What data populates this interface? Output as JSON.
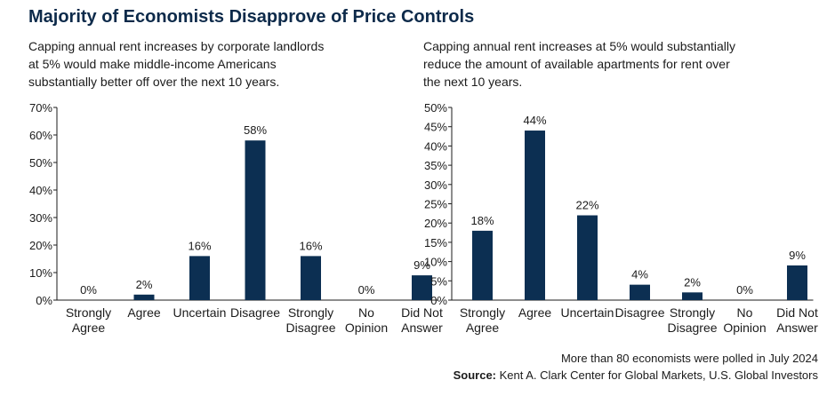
{
  "title": "Majority of Economists Disapprove of Price Controls",
  "footnote": "More than 80 economists were polled in July 2024",
  "source_label": "Source:",
  "source_text": " Kent A. Clark Center for Global Markets, U.S. Global Investors",
  "colors": {
    "bar": "#0c2f52",
    "axis": "#1b1b1b",
    "title": "#0d2a4a"
  },
  "chart_data": [
    {
      "type": "bar",
      "subtitle_lines": [
        "Capping annual rent increases by corporate landlords",
        "at 5% would make middle-income Americans",
        "substantially better off over the next 10 years."
      ],
      "categories": [
        [
          "Strongly",
          "Agree"
        ],
        [
          "Agree"
        ],
        [
          "Uncertain"
        ],
        [
          "Disagree"
        ],
        [
          "Strongly",
          "Disagree"
        ],
        [
          "No",
          "Opinion"
        ],
        [
          "Did Not",
          "Answer"
        ]
      ],
      "values": [
        0,
        2,
        16,
        58,
        16,
        0,
        9
      ],
      "value_labels": [
        "0%",
        "2%",
        "16%",
        "58%",
        "16%",
        "0%",
        "9%"
      ],
      "ylim": [
        0,
        70
      ],
      "yticks": [
        0,
        10,
        20,
        30,
        40,
        50,
        60,
        70
      ],
      "ytick_labels": [
        "0%",
        "10%",
        "20%",
        "30%",
        "40%",
        "50%",
        "60%",
        "70%"
      ]
    },
    {
      "type": "bar",
      "subtitle_lines": [
        "Capping annual rent increases at 5% would substantially",
        "reduce the amount of available apartments for rent over",
        "the next 10 years."
      ],
      "categories": [
        [
          "Strongly",
          "Agree"
        ],
        [
          "Agree"
        ],
        [
          "Uncertain"
        ],
        [
          "Disagree"
        ],
        [
          "Strongly",
          "Disagree"
        ],
        [
          "No",
          "Opinion"
        ],
        [
          "Did Not",
          "Answer"
        ]
      ],
      "values": [
        18,
        44,
        22,
        4,
        2,
        0,
        9
      ],
      "value_labels": [
        "18%",
        "44%",
        "22%",
        "4%",
        "2%",
        "0%",
        "9%"
      ],
      "ylim": [
        0,
        50
      ],
      "yticks": [
        0,
        5,
        10,
        15,
        20,
        25,
        30,
        35,
        40,
        45,
        50
      ],
      "ytick_labels": [
        "0%",
        "5%",
        "10%",
        "15%",
        "20%",
        "25%",
        "30%",
        "35%",
        "40%",
        "45%",
        "50%"
      ]
    }
  ]
}
